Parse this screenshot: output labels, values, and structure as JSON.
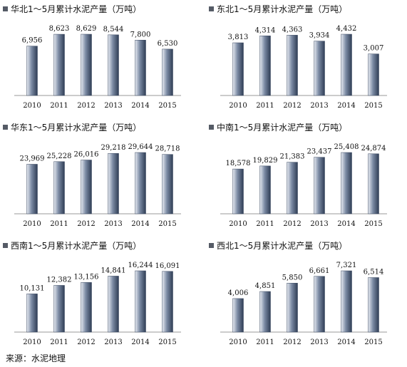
{
  "source": "来源：水泥地理",
  "colors": {
    "bar_top": "#e8ecf3",
    "bar_mid": "#7b8aa3",
    "bar_bottom": "#2f3d55",
    "axis": "#999999"
  },
  "chart_data": [
    {
      "type": "bar",
      "title": "华北1～5月累计水泥产量（万吨）",
      "categories": [
        "2010",
        "2011",
        "2012",
        "2013",
        "2014",
        "2015"
      ],
      "values": [
        6956,
        8623,
        8629,
        8544,
        7800,
        6530
      ],
      "value_labels": [
        "6,956",
        "8,623",
        "8,629",
        "8,544",
        "7,800",
        "6,530"
      ]
    },
    {
      "type": "bar",
      "title": "东北1～5月累计水泥产量（万吨）",
      "categories": [
        "2010",
        "2011",
        "2012",
        "2013",
        "2014",
        "2015"
      ],
      "values": [
        3813,
        4314,
        4363,
        3934,
        4432,
        3007
      ],
      "value_labels": [
        "3,813",
        "4,314",
        "4,363",
        "3,934",
        "4,432",
        "3,007"
      ]
    },
    {
      "type": "bar",
      "title": "华东1～5月累计水泥产量（万吨）",
      "categories": [
        "2010",
        "2011",
        "2012",
        "2013",
        "2014",
        "2015"
      ],
      "values": [
        23969,
        25228,
        26016,
        29218,
        29644,
        28718
      ],
      "value_labels": [
        "23,969",
        "25,228",
        "26,016",
        "29,218",
        "29,644",
        "28,718"
      ]
    },
    {
      "type": "bar",
      "title": "中南1～5月累计水泥产量（万吨）",
      "categories": [
        "2010",
        "2011",
        "2012",
        "2013",
        "2014",
        "2015"
      ],
      "values": [
        18578,
        19829,
        21383,
        23437,
        25408,
        24874
      ],
      "value_labels": [
        "18,578",
        "19,829",
        "21,383",
        "23,437",
        "25,408",
        "24,874"
      ]
    },
    {
      "type": "bar",
      "title": "西南1～5月累计水泥产量（万吨）",
      "categories": [
        "2010",
        "2011",
        "2012",
        "2013",
        "2014",
        "2015"
      ],
      "values": [
        10131,
        12382,
        13156,
        14841,
        16244,
        16091
      ],
      "value_labels": [
        "10,131",
        "12,382",
        "13,156",
        "14,841",
        "16,244",
        "16,091"
      ]
    },
    {
      "type": "bar",
      "title": "西北1～5月累计水泥产量（万吨）",
      "categories": [
        "2010",
        "2011",
        "2012",
        "2013",
        "2014",
        "2015"
      ],
      "values": [
        4006,
        4851,
        5850,
        6661,
        7321,
        6514
      ],
      "value_labels": [
        "4,006",
        "4,851",
        "5,850",
        "6,661",
        "7,321",
        "6,514"
      ]
    }
  ]
}
